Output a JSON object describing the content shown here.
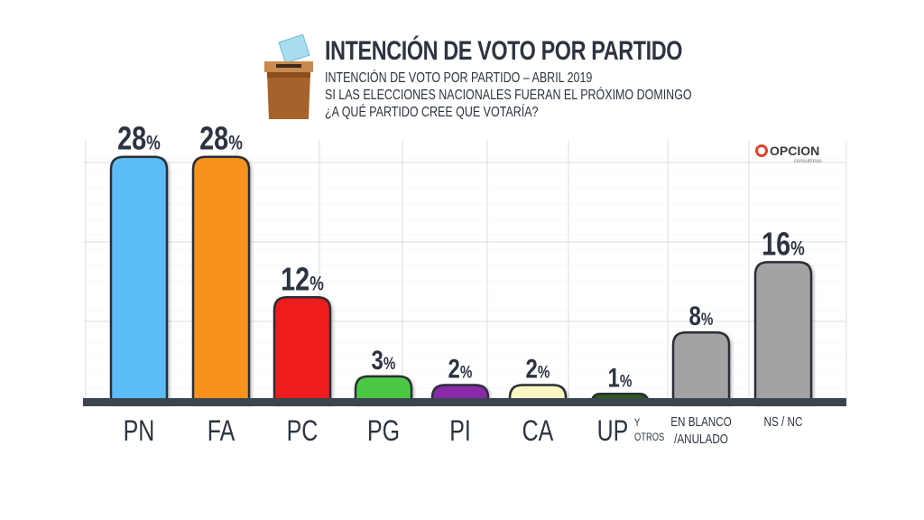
{
  "header": {
    "title": "INTENCIÓN DE VOTO POR PARTIDO",
    "subtitle": "INTENCIÓN DE VOTO POR PARTIDO – ABRIL 2019",
    "question_line1": "SI LAS ELECCIONES NACIONALES FUERAN EL PRÓXIMO DOMINGO",
    "question_line2": "¿A QUÉ PARTIDO CREE QUE VOTARÍA?"
  },
  "logo": {
    "brand": "OPCION",
    "tagline": "consultores"
  },
  "colors": {
    "axis": "#3b4550",
    "text": "#2c3440",
    "grid": "#d9dde2"
  },
  "chart_data": {
    "type": "bar",
    "categories": [
      "PN",
      "FA",
      "PC",
      "PG",
      "PI",
      "CA",
      "UP",
      "EN BLANCO /ANULADO",
      "NS / NC"
    ],
    "category_labels": [
      [
        "PN"
      ],
      [
        "FA"
      ],
      [
        "PC"
      ],
      [
        "PG"
      ],
      [
        "PI"
      ],
      [
        "CA"
      ],
      [
        "UP",
        "Y",
        "OTROS"
      ],
      [
        "EN BLANCO",
        "/ANULADO"
      ],
      [
        "NS / NC"
      ]
    ],
    "values": [
      28,
      28,
      12,
      3,
      2,
      2,
      1,
      8,
      16
    ],
    "value_suffix": "%",
    "bar_colors": [
      "#5bbcf7",
      "#f7931e",
      "#ee1c1c",
      "#4cc945",
      "#8a2aa8",
      "#fdf6c2",
      "#2d5a1e",
      "#a3a3a3",
      "#a3a3a3"
    ],
    "ylim": [
      0,
      30
    ],
    "grid": true,
    "legend": "none"
  }
}
